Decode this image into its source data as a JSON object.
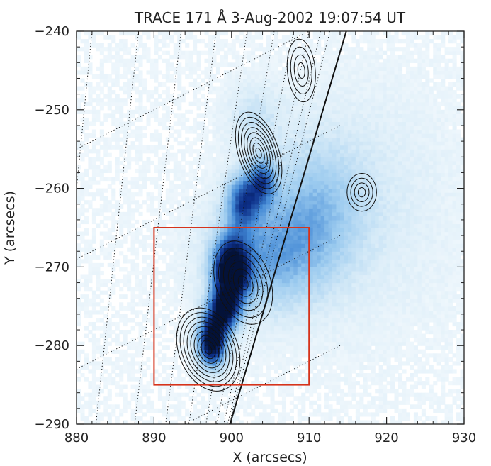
{
  "chart_data": {
    "type": "heatmap",
    "title": "TRACE 171 Å   3-Aug-2002 19:07:54 UT",
    "xlabel": "X (arcsecs)",
    "ylabel": "Y (arcsecs)",
    "xlim": [
      880,
      930
    ],
    "ylim": [
      -290,
      -240
    ],
    "x_ticks": [
      880,
      890,
      900,
      910,
      920,
      930
    ],
    "y_ticks": [
      -240,
      -250,
      -260,
      -270,
      -280,
      -290
    ],
    "x_tick_labels": [
      "880",
      "890",
      "900",
      "910",
      "920",
      "930"
    ],
    "y_tick_labels": [
      "−240",
      "−250",
      "−260",
      "−270",
      "−280",
      "−290"
    ],
    "colormap": [
      "#ffffff",
      "#d9ecf8",
      "#9ccbef",
      "#3f86d4",
      "#0d2f88",
      "#041238"
    ],
    "intensity_blobs": [
      {
        "x": 900.0,
        "y": -270.5,
        "sx": 1.6,
        "sy": 2.8,
        "amp": 1.0
      },
      {
        "x": 897.5,
        "y": -279.5,
        "sx": 1.3,
        "sy": 2.2,
        "amp": 1.0
      },
      {
        "x": 899.0,
        "y": -275.5,
        "sx": 1.4,
        "sy": 1.8,
        "amp": 0.75
      },
      {
        "x": 901.5,
        "y": -261.5,
        "sx": 1.5,
        "sy": 2.4,
        "amp": 0.55
      },
      {
        "x": 904.0,
        "y": -259.0,
        "sx": 1.2,
        "sy": 2.0,
        "amp": 0.5
      },
      {
        "x": 904.5,
        "y": -268.5,
        "sx": 5.0,
        "sy": 5.0,
        "amp": 0.35
      },
      {
        "x": 911.0,
        "y": -262.5,
        "sx": 4.0,
        "sy": 6.0,
        "amp": 0.22
      },
      {
        "x": 903.0,
        "y": -251.0,
        "sx": 2.5,
        "sy": 3.0,
        "amp": 0.15
      },
      {
        "x": 916.0,
        "y": -262.0,
        "sx": 8.0,
        "sy": 10.0,
        "amp": 0.12
      }
    ],
    "contours": [
      {
        "x": 903.5,
        "y": -255.5,
        "rx_max": 2.6,
        "ry_max": 5.4,
        "levels": 8,
        "tilt_deg": -18
      },
      {
        "x": 909.0,
        "y": -245.0,
        "rx_max": 1.8,
        "ry_max": 4.0,
        "levels": 4,
        "tilt_deg": -5
      },
      {
        "x": 901.5,
        "y": -272.0,
        "rx_max": 3.5,
        "ry_max": 5.5,
        "levels": 6,
        "tilt_deg": -20
      },
      {
        "x": 897.0,
        "y": -280.5,
        "rx_max": 3.8,
        "ry_max": 5.5,
        "levels": 9,
        "tilt_deg": -22
      },
      {
        "x": 916.8,
        "y": -260.5,
        "rx_max": 1.9,
        "ry_max": 2.4,
        "levels": 4,
        "tilt_deg": 0
      }
    ],
    "limb_line": [
      [
        899.8,
        -290
      ],
      [
        914.8,
        -240
      ]
    ],
    "box": {
      "x0": 890,
      "x1": 910,
      "y0": -285,
      "y1": -265,
      "color": "#d6331b"
    },
    "grid": "dotted heliographic grid",
    "legend": "none"
  }
}
